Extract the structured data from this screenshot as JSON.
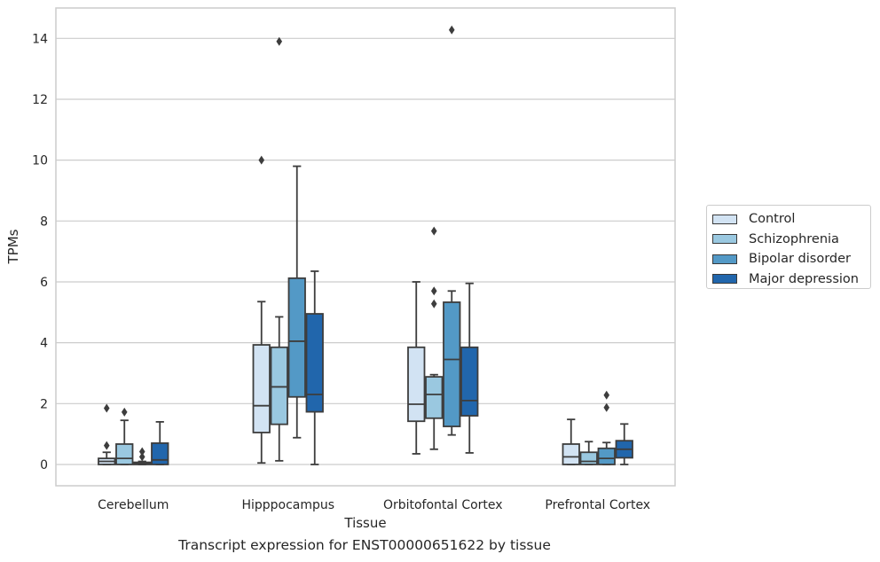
{
  "caption": "Transcript expression for ENST00000651622 by tissue",
  "chart_data": {
    "type": "box",
    "title": "",
    "xlabel": "Tissue",
    "ylabel": "TPMs",
    "ylim": [
      -0.7,
      15
    ],
    "yticks": [
      0,
      2,
      4,
      6,
      8,
      10,
      12,
      14
    ],
    "grid": true,
    "legend_position": "right",
    "categories": [
      "Cerebellum",
      "Hipppocampus",
      "Orbitofontal Cortex",
      "Prefrontal Cortex"
    ],
    "series": [
      {
        "name": "Control",
        "color": "#d2e3f3",
        "boxes": [
          {
            "whislo": 0.0,
            "q1": 0.0,
            "med": 0.1,
            "q3": 0.2,
            "whishi": 0.4,
            "fliers": [
              0.62,
              1.85
            ]
          },
          {
            "whislo": 0.05,
            "q1": 1.05,
            "med": 1.93,
            "q3": 3.93,
            "whishi": 5.35,
            "fliers": [
              10.0
            ]
          },
          {
            "whislo": 0.35,
            "q1": 1.42,
            "med": 1.98,
            "q3": 3.85,
            "whishi": 6.0,
            "fliers": []
          },
          {
            "whislo": 0.0,
            "q1": 0.0,
            "med": 0.25,
            "q3": 0.67,
            "whishi": 1.48,
            "fliers": []
          }
        ]
      },
      {
        "name": "Schizophrenia",
        "color": "#9ac8e0",
        "boxes": [
          {
            "whislo": 0.0,
            "q1": 0.0,
            "med": 0.2,
            "q3": 0.67,
            "whishi": 1.45,
            "fliers": [
              1.72
            ]
          },
          {
            "whislo": 0.12,
            "q1": 1.32,
            "med": 2.55,
            "q3": 3.85,
            "whishi": 4.85,
            "fliers": [
              13.9
            ]
          },
          {
            "whislo": 0.5,
            "q1": 1.52,
            "med": 2.3,
            "q3": 2.88,
            "whishi": 2.95,
            "fliers": [
              5.28,
              5.7,
              7.67
            ]
          },
          {
            "whislo": 0.0,
            "q1": 0.0,
            "med": 0.1,
            "q3": 0.4,
            "whishi": 0.75,
            "fliers": []
          }
        ]
      },
      {
        "name": "Bipolar disorder",
        "color": "#5399c6",
        "boxes": [
          {
            "whislo": 0.0,
            "q1": 0.0,
            "med": 0.03,
            "q3": 0.07,
            "whishi": 0.1,
            "fliers": [
              0.25,
              0.42
            ]
          },
          {
            "whislo": 0.88,
            "q1": 2.22,
            "med": 4.05,
            "q3": 6.12,
            "whishi": 9.8,
            "fliers": []
          },
          {
            "whislo": 0.97,
            "q1": 1.25,
            "med": 3.45,
            "q3": 5.33,
            "whishi": 5.7,
            "fliers": [
              14.28
            ]
          },
          {
            "whislo": 0.0,
            "q1": 0.0,
            "med": 0.2,
            "q3": 0.53,
            "whishi": 0.72,
            "fliers": [
              1.87,
              2.28
            ]
          }
        ]
      },
      {
        "name": "Major depression",
        "color": "#2166ac",
        "boxes": [
          {
            "whislo": 0.0,
            "q1": 0.0,
            "med": 0.15,
            "q3": 0.7,
            "whishi": 1.4,
            "fliers": []
          },
          {
            "whislo": 0.0,
            "q1": 1.73,
            "med": 2.3,
            "q3": 4.95,
            "whishi": 6.35,
            "fliers": []
          },
          {
            "whislo": 0.38,
            "q1": 1.6,
            "med": 2.1,
            "q3": 3.85,
            "whishi": 5.95,
            "fliers": []
          },
          {
            "whislo": 0.0,
            "q1": 0.22,
            "med": 0.5,
            "q3": 0.78,
            "whishi": 1.33,
            "fliers": []
          }
        ]
      }
    ]
  }
}
